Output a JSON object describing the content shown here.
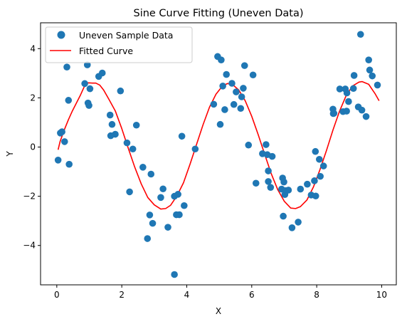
{
  "chart_data": {
    "type": "scatter",
    "title": "Sine Curve Fitting (Uneven Data)",
    "xlabel": "X",
    "ylabel": "Y",
    "xlim": [
      -0.5,
      10.45
    ],
    "ylim": [
      -5.6,
      5.05
    ],
    "xticks": [
      0,
      2,
      4,
      6,
      8,
      10
    ],
    "yticks": [
      -4,
      -2,
      0,
      2,
      4
    ],
    "xtick_labels": [
      "0",
      "2",
      "4",
      "6",
      "8",
      "10"
    ],
    "ytick_labels": [
      "−4",
      "−2",
      "0",
      "2",
      "4"
    ],
    "grid": false,
    "legend_position": "upper-left",
    "colors": {
      "scatter": "#1f77b4",
      "curve": "#ff0000"
    },
    "series": [
      {
        "name": "Uneven Sample Data",
        "kind": "scatter",
        "points": [
          [
            0.04,
            -0.53
          ],
          [
            0.11,
            0.57
          ],
          [
            0.16,
            0.62
          ],
          [
            0.24,
            0.22
          ],
          [
            0.31,
            3.25
          ],
          [
            0.36,
            1.9
          ],
          [
            0.38,
            -0.7
          ],
          [
            0.86,
            2.58
          ],
          [
            0.94,
            3.34
          ],
          [
            0.96,
            1.79
          ],
          [
            0.99,
            1.69
          ],
          [
            1.02,
            2.37
          ],
          [
            1.29,
            2.87
          ],
          [
            1.4,
            3.01
          ],
          [
            1.64,
            1.3
          ],
          [
            1.66,
            0.46
          ],
          [
            1.7,
            0.92
          ],
          [
            1.8,
            0.52
          ],
          [
            1.96,
            2.28
          ],
          [
            2.16,
            0.17
          ],
          [
            2.24,
            -1.82
          ],
          [
            2.34,
            -0.08
          ],
          [
            2.45,
            0.89
          ],
          [
            2.65,
            -0.82
          ],
          [
            2.79,
            -3.72
          ],
          [
            2.86,
            -2.76
          ],
          [
            2.9,
            -1.1
          ],
          [
            2.95,
            -3.1
          ],
          [
            3.2,
            -2.05
          ],
          [
            3.27,
            -1.7
          ],
          [
            3.42,
            -3.26
          ],
          [
            3.62,
            -5.18
          ],
          [
            3.62,
            -2.0
          ],
          [
            3.68,
            -2.75
          ],
          [
            3.73,
            -1.92
          ],
          [
            3.77,
            -2.75
          ],
          [
            3.85,
            0.44
          ],
          [
            3.92,
            -2.38
          ],
          [
            4.26,
            -0.08
          ],
          [
            4.83,
            1.74
          ],
          [
            4.95,
            3.68
          ],
          [
            5.03,
            0.92
          ],
          [
            5.06,
            3.54
          ],
          [
            5.11,
            2.48
          ],
          [
            5.17,
            1.52
          ],
          [
            5.22,
            2.95
          ],
          [
            5.39,
            2.59
          ],
          [
            5.45,
            1.73
          ],
          [
            5.52,
            2.24
          ],
          [
            5.66,
            1.57
          ],
          [
            5.69,
            2.04
          ],
          [
            5.74,
            2.39
          ],
          [
            5.78,
            3.31
          ],
          [
            5.9,
            0.08
          ],
          [
            6.04,
            2.93
          ],
          [
            6.13,
            -1.47
          ],
          [
            6.33,
            -0.27
          ],
          [
            6.44,
            0.1
          ],
          [
            6.48,
            -0.31
          ],
          [
            6.51,
            -0.97
          ],
          [
            6.51,
            -1.4
          ],
          [
            6.58,
            -1.64
          ],
          [
            6.63,
            -0.38
          ],
          [
            6.92,
            -1.71
          ],
          [
            6.95,
            -1.26
          ],
          [
            6.97,
            -2.81
          ],
          [
            6.99,
            -1.42
          ],
          [
            7.02,
            -1.93
          ],
          [
            7.05,
            -1.77
          ],
          [
            7.13,
            -1.75
          ],
          [
            7.24,
            -3.28
          ],
          [
            7.43,
            -3.05
          ],
          [
            7.5,
            -1.71
          ],
          [
            7.71,
            -1.51
          ],
          [
            7.83,
            -1.95
          ],
          [
            7.93,
            -1.37
          ],
          [
            7.96,
            -0.18
          ],
          [
            7.97,
            -1.99
          ],
          [
            8.08,
            -0.5
          ],
          [
            8.11,
            -1.19
          ],
          [
            8.21,
            -0.77
          ],
          [
            8.5,
            1.54
          ],
          [
            8.51,
            1.36
          ],
          [
            8.53,
            1.37
          ],
          [
            8.71,
            2.36
          ],
          [
            8.81,
            1.44
          ],
          [
            8.88,
            2.36
          ],
          [
            8.92,
            1.46
          ],
          [
            8.93,
            2.2
          ],
          [
            8.98,
            1.85
          ],
          [
            9.13,
            2.38
          ],
          [
            9.15,
            2.91
          ],
          [
            9.28,
            1.63
          ],
          [
            9.35,
            4.58
          ],
          [
            9.39,
            1.5
          ],
          [
            9.52,
            1.24
          ],
          [
            9.6,
            3.54
          ],
          [
            9.63,
            3.13
          ],
          [
            9.71,
            2.89
          ],
          [
            9.87,
            2.52
          ]
        ]
      },
      {
        "name": "Fitted Curve",
        "kind": "line",
        "points": [
          [
            0.04,
            -0.11
          ],
          [
            0.1,
            0.22
          ],
          [
            0.24,
            0.73
          ],
          [
            0.36,
            1.12
          ],
          [
            0.48,
            1.47
          ],
          [
            0.6,
            1.78
          ],
          [
            0.72,
            2.09
          ],
          [
            0.84,
            2.44
          ],
          [
            0.96,
            2.61
          ],
          [
            1.1,
            2.6
          ],
          [
            1.2,
            2.6
          ],
          [
            1.32,
            2.52
          ],
          [
            1.44,
            2.32
          ],
          [
            1.6,
            1.95
          ],
          [
            1.8,
            1.47
          ],
          [
            2.0,
            0.75
          ],
          [
            2.2,
            -0.05
          ],
          [
            2.4,
            -0.82
          ],
          [
            2.6,
            -1.5
          ],
          [
            2.8,
            -2.05
          ],
          [
            3.0,
            -2.35
          ],
          [
            3.2,
            -2.52
          ],
          [
            3.35,
            -2.5
          ],
          [
            3.5,
            -2.37
          ],
          [
            3.7,
            -1.98
          ],
          [
            3.9,
            -1.45
          ],
          [
            4.1,
            -0.7
          ],
          [
            4.3,
            0.1
          ],
          [
            4.5,
            0.9
          ],
          [
            4.7,
            1.62
          ],
          [
            4.9,
            2.15
          ],
          [
            5.1,
            2.48
          ],
          [
            5.25,
            2.58
          ],
          [
            5.4,
            2.55
          ],
          [
            5.6,
            2.32
          ],
          [
            5.8,
            1.88
          ],
          [
            6.0,
            1.25
          ],
          [
            6.2,
            0.5
          ],
          [
            6.4,
            -0.3
          ],
          [
            6.6,
            -1.08
          ],
          [
            6.8,
            -1.73
          ],
          [
            7.0,
            -2.2
          ],
          [
            7.2,
            -2.48
          ],
          [
            7.35,
            -2.5
          ],
          [
            7.5,
            -2.42
          ],
          [
            7.7,
            -2.15
          ],
          [
            7.9,
            -1.62
          ],
          [
            8.1,
            -0.92
          ],
          [
            8.3,
            -0.14
          ],
          [
            8.5,
            0.69
          ],
          [
            8.7,
            1.45
          ],
          [
            8.9,
            2.07
          ],
          [
            9.1,
            2.48
          ],
          [
            9.3,
            2.64
          ],
          [
            9.4,
            2.66
          ],
          [
            9.6,
            2.55
          ],
          [
            9.8,
            2.16
          ],
          [
            9.92,
            1.88
          ]
        ]
      }
    ]
  }
}
